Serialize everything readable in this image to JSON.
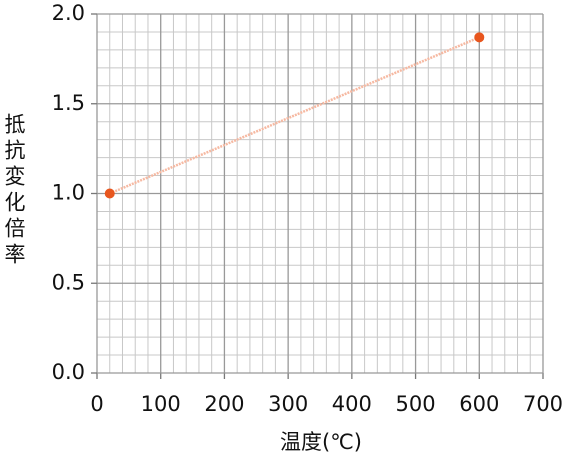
{
  "chart_data": {
    "type": "line",
    "x_label": "温度(℃)",
    "y_label": "抵抗変化倍率",
    "x": [
      20,
      600
    ],
    "series": [
      {
        "values": [
          1.0,
          1.87
        ],
        "color": "#e8561e",
        "line_color": "#f6b9a2"
      }
    ],
    "xlim": [
      0,
      700
    ],
    "xticks": [
      0,
      100,
      200,
      300,
      400,
      500,
      600,
      700
    ],
    "ylim": [
      0,
      2.0
    ],
    "yticks": [
      {
        "value": 0,
        "label": "0.0"
      },
      {
        "value": 0.5,
        "label": "0.5"
      },
      {
        "value": 1.0,
        "label": "1.0"
      },
      {
        "value": 1.5,
        "label": "1.5"
      },
      {
        "value": 2.0,
        "label": "2.0"
      }
    ],
    "grid": true,
    "minor_grid_divisions": 5
  }
}
